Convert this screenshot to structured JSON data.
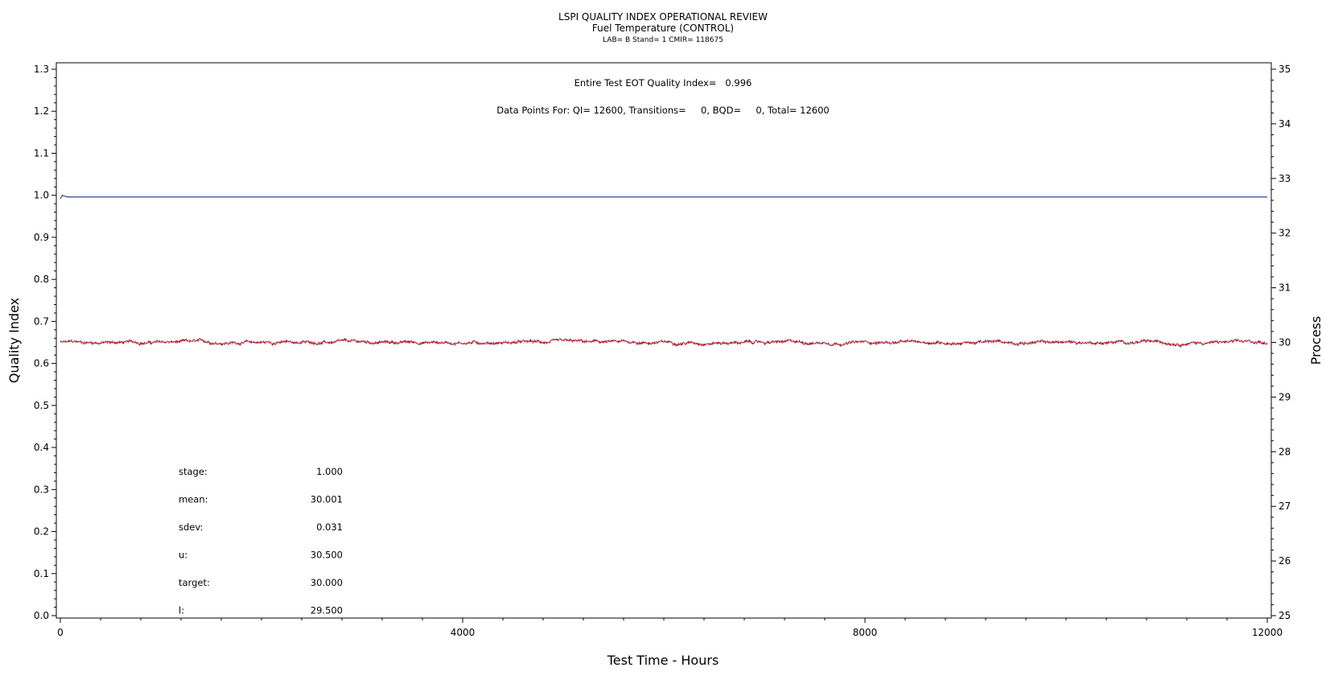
{
  "chart_data": {
    "type": "line",
    "title": "LSPI QUALITY INDEX OPERATIONAL REVIEW",
    "subtitle": "Fuel Temperature (CONTROL)",
    "subtitle2": "LAB= B Stand= 1 CMIR= 118675",
    "xlabel": "Test Time - Hours",
    "ylabel": "Quality Index",
    "y2label": "Process",
    "xlim": [
      0,
      12000
    ],
    "ylim": [
      0.0,
      1.3
    ],
    "y2lim": [
      25,
      35
    ],
    "xticks": [
      "0",
      "4000",
      "8000",
      "12000"
    ],
    "yticks": [
      "0.0",
      "0.1",
      "0.2",
      "0.3",
      "0.4",
      "0.5",
      "0.6",
      "0.7",
      "0.8",
      "0.9",
      "1.0",
      "1.1",
      "1.2",
      "1.3"
    ],
    "y2ticks": [
      "25",
      "26",
      "27",
      "28",
      "29",
      "30",
      "31",
      "32",
      "33",
      "34",
      "35"
    ],
    "annotations": [
      "Entire Test EOT Quality Index=   0.996",
      "Data Points For: QI= 12600, Transitions=     0, BQD=     0, Total= 12600"
    ],
    "series": [
      {
        "axis": "left",
        "color": "#1f2a9c",
        "x": [
          0,
          20,
          40,
          80,
          150,
          12000
        ],
        "y": [
          0.992,
          1.0,
          0.998,
          0.996,
          0.996,
          0.996
        ]
      },
      {
        "axis": "right",
        "color": "#b0162a",
        "x": [
          0,
          12000
        ],
        "y": [
          30.0,
          30.0
        ],
        "mean": 30.001,
        "sdev": 0.031
      }
    ],
    "stats": [
      {
        "label": "stage:",
        "value": "1.000"
      },
      {
        "label": "mean:",
        "value": "30.001"
      },
      {
        "label": "sdev:",
        "value": "0.031"
      },
      {
        "label": "u:",
        "value": "30.500"
      },
      {
        "label": "target:",
        "value": "30.000"
      },
      {
        "label": "l:",
        "value": "29.500"
      }
    ]
  }
}
